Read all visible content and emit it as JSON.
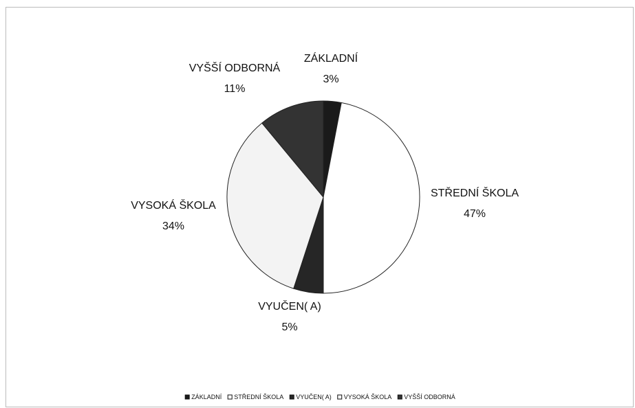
{
  "chart_data": {
    "type": "pie",
    "categories": [
      "ZÁKLADNÍ",
      "STŘEDNÍ ŠKOLA",
      "VYUČEN( A)",
      "VYSOKÁ ŠKOLA",
      "VYŠŠÍ ODBORNÁ"
    ],
    "values": [
      3,
      47,
      5,
      34,
      11
    ],
    "value_labels": [
      "3%",
      "47%",
      "5%",
      "34%",
      "11%"
    ],
    "colors": [
      "#1a1a1a",
      "#ffffff",
      "#262626",
      "#f3f3f3",
      "#333333"
    ],
    "legend": "bottom"
  }
}
